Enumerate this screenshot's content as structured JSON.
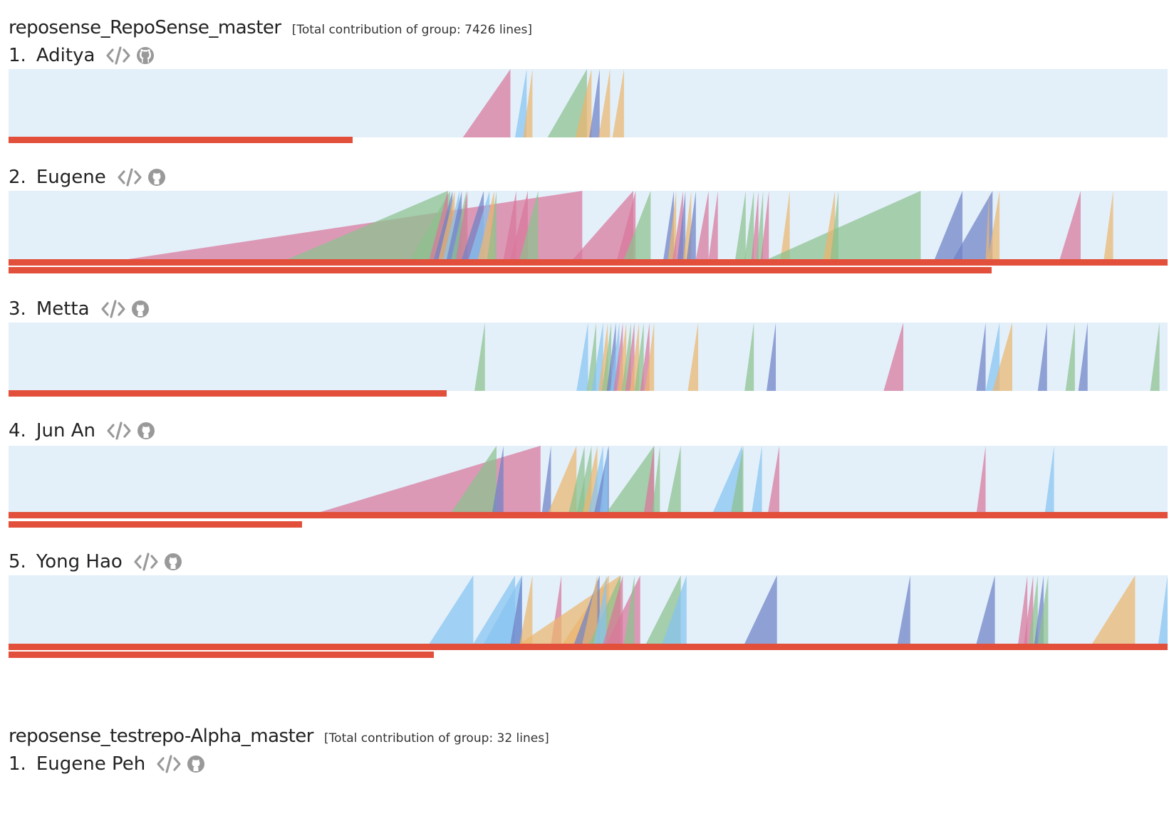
{
  "groups": [
    {
      "title": "reposense_RepoSense_master",
      "total": "[Total contribution of group: 7426 lines]",
      "users": [
        {
          "rank": "1.",
          "name": "Aditya",
          "bars": [
            0.297
          ],
          "commits": [
            {
              "start": 0.392,
              "end": 0.433,
              "color": "pink"
            },
            {
              "start": 0.437,
              "end": 0.447,
              "color": "blue"
            },
            {
              "start": 0.444,
              "end": 0.452,
              "color": "orange"
            },
            {
              "start": 0.465,
              "end": 0.499,
              "color": "green"
            },
            {
              "start": 0.489,
              "end": 0.503,
              "color": "orange"
            },
            {
              "start": 0.501,
              "end": 0.51,
              "color": "navy"
            },
            {
              "start": 0.509,
              "end": 0.519,
              "color": "orange"
            },
            {
              "start": 0.521,
              "end": 0.531,
              "color": "orange"
            }
          ]
        },
        {
          "rank": "2.",
          "name": "Eugene",
          "bars": [
            1.0,
            0.848
          ],
          "commits": [
            {
              "start": 0.103,
              "end": 0.495,
              "color": "pink"
            },
            {
              "start": 0.241,
              "end": 0.379,
              "color": "green"
            },
            {
              "start": 0.347,
              "end": 0.381,
              "color": "green"
            },
            {
              "start": 0.363,
              "end": 0.379,
              "color": "pink"
            },
            {
              "start": 0.367,
              "end": 0.383,
              "color": "navy"
            },
            {
              "start": 0.371,
              "end": 0.385,
              "color": "orange"
            },
            {
              "start": 0.375,
              "end": 0.389,
              "color": "blue"
            },
            {
              "start": 0.378,
              "end": 0.391,
              "color": "navy"
            },
            {
              "start": 0.382,
              "end": 0.395,
              "color": "green"
            },
            {
              "start": 0.386,
              "end": 0.396,
              "color": "pink"
            },
            {
              "start": 0.391,
              "end": 0.41,
              "color": "navy"
            },
            {
              "start": 0.397,
              "end": 0.415,
              "color": "blue"
            },
            {
              "start": 0.405,
              "end": 0.419,
              "color": "orange"
            },
            {
              "start": 0.413,
              "end": 0.421,
              "color": "green"
            },
            {
              "start": 0.427,
              "end": 0.438,
              "color": "pink"
            },
            {
              "start": 0.433,
              "end": 0.448,
              "color": "pink"
            },
            {
              "start": 0.441,
              "end": 0.457,
              "color": "green"
            },
            {
              "start": 0.487,
              "end": 0.539,
              "color": "pink"
            },
            {
              "start": 0.525,
              "end": 0.541,
              "color": "pink"
            },
            {
              "start": 0.531,
              "end": 0.554,
              "color": "green"
            },
            {
              "start": 0.565,
              "end": 0.574,
              "color": "navy"
            },
            {
              "start": 0.569,
              "end": 0.576,
              "color": "orange"
            },
            {
              "start": 0.573,
              "end": 0.582,
              "color": "pink"
            },
            {
              "start": 0.577,
              "end": 0.584,
              "color": "navy"
            },
            {
              "start": 0.582,
              "end": 0.589,
              "color": "orange"
            },
            {
              "start": 0.585,
              "end": 0.593,
              "color": "navy"
            },
            {
              "start": 0.593,
              "end": 0.604,
              "color": "pink"
            },
            {
              "start": 0.604,
              "end": 0.612,
              "color": "pink"
            },
            {
              "start": 0.627,
              "end": 0.636,
              "color": "green"
            },
            {
              "start": 0.635,
              "end": 0.643,
              "color": "green"
            },
            {
              "start": 0.641,
              "end": 0.647,
              "color": "pink"
            },
            {
              "start": 0.645,
              "end": 0.651,
              "color": "green"
            },
            {
              "start": 0.649,
              "end": 0.656,
              "color": "pink"
            },
            {
              "start": 0.666,
              "end": 0.674,
              "color": "orange"
            },
            {
              "start": 0.655,
              "end": 0.787,
              "color": "green"
            },
            {
              "start": 0.703,
              "end": 0.713,
              "color": "orange"
            },
            {
              "start": 0.709,
              "end": 0.716,
              "color": "green"
            },
            {
              "start": 0.799,
              "end": 0.823,
              "color": "navy"
            },
            {
              "start": 0.815,
              "end": 0.849,
              "color": "navy"
            },
            {
              "start": 0.843,
              "end": 0.846,
              "color": "orange"
            },
            {
              "start": 0.845,
              "end": 0.855,
              "color": "orange"
            },
            {
              "start": 0.907,
              "end": 0.925,
              "color": "pink"
            },
            {
              "start": 0.945,
              "end": 0.953,
              "color": "orange"
            }
          ]
        },
        {
          "rank": "3.",
          "name": "Metta",
          "bars": [
            0.378
          ],
          "commits": [
            {
              "start": 0.402,
              "end": 0.411,
              "color": "green"
            },
            {
              "start": 0.49,
              "end": 0.5,
              "color": "blue"
            },
            {
              "start": 0.499,
              "end": 0.507,
              "color": "green"
            },
            {
              "start": 0.503,
              "end": 0.513,
              "color": "blue"
            },
            {
              "start": 0.509,
              "end": 0.517,
              "color": "orange"
            },
            {
              "start": 0.512,
              "end": 0.52,
              "color": "green"
            },
            {
              "start": 0.516,
              "end": 0.524,
              "color": "navy"
            },
            {
              "start": 0.519,
              "end": 0.527,
              "color": "blue"
            },
            {
              "start": 0.522,
              "end": 0.53,
              "color": "pink"
            },
            {
              "start": 0.525,
              "end": 0.533,
              "color": "orange"
            },
            {
              "start": 0.529,
              "end": 0.537,
              "color": "green"
            },
            {
              "start": 0.532,
              "end": 0.54,
              "color": "pink"
            },
            {
              "start": 0.536,
              "end": 0.544,
              "color": "orange"
            },
            {
              "start": 0.54,
              "end": 0.548,
              "color": "green"
            },
            {
              "start": 0.545,
              "end": 0.553,
              "color": "pink"
            },
            {
              "start": 0.549,
              "end": 0.557,
              "color": "orange"
            },
            {
              "start": 0.586,
              "end": 0.595,
              "color": "orange"
            },
            {
              "start": 0.635,
              "end": 0.643,
              "color": "green"
            },
            {
              "start": 0.654,
              "end": 0.662,
              "color": "navy"
            },
            {
              "start": 0.755,
              "end": 0.772,
              "color": "pink"
            },
            {
              "start": 0.835,
              "end": 0.843,
              "color": "navy"
            },
            {
              "start": 0.843,
              "end": 0.855,
              "color": "blue"
            },
            {
              "start": 0.849,
              "end": 0.866,
              "color": "orange"
            },
            {
              "start": 0.888,
              "end": 0.896,
              "color": "navy"
            },
            {
              "start": 0.912,
              "end": 0.92,
              "color": "green"
            },
            {
              "start": 0.923,
              "end": 0.931,
              "color": "navy"
            },
            {
              "start": 0.985,
              "end": 0.993,
              "color": "green"
            }
          ]
        },
        {
          "rank": "4.",
          "name": "Jun An",
          "bars": [
            1.0,
            0.253
          ],
          "commits": [
            {
              "start": 0.263,
              "end": 0.459,
              "color": "pink"
            },
            {
              "start": 0.381,
              "end": 0.421,
              "color": "green"
            },
            {
              "start": 0.417,
              "end": 0.427,
              "color": "navy"
            },
            {
              "start": 0.46,
              "end": 0.468,
              "color": "navy"
            },
            {
              "start": 0.465,
              "end": 0.49,
              "color": "orange"
            },
            {
              "start": 0.483,
              "end": 0.497,
              "color": "green"
            },
            {
              "start": 0.49,
              "end": 0.503,
              "color": "green"
            },
            {
              "start": 0.495,
              "end": 0.508,
              "color": "orange"
            },
            {
              "start": 0.5,
              "end": 0.513,
              "color": "blue"
            },
            {
              "start": 0.505,
              "end": 0.518,
              "color": "navy"
            },
            {
              "start": 0.51,
              "end": 0.517,
              "color": "blue"
            },
            {
              "start": 0.515,
              "end": 0.557,
              "color": "green"
            },
            {
              "start": 0.548,
              "end": 0.557,
              "color": "pink"
            },
            {
              "start": 0.555,
              "end": 0.562,
              "color": "green"
            },
            {
              "start": 0.568,
              "end": 0.58,
              "color": "green"
            },
            {
              "start": 0.607,
              "end": 0.633,
              "color": "blue"
            },
            {
              "start": 0.623,
              "end": 0.634,
              "color": "green"
            },
            {
              "start": 0.641,
              "end": 0.65,
              "color": "blue"
            },
            {
              "start": 0.655,
              "end": 0.665,
              "color": "pink"
            },
            {
              "start": 0.835,
              "end": 0.843,
              "color": "pink"
            },
            {
              "start": 0.894,
              "end": 0.902,
              "color": "blue"
            }
          ]
        },
        {
          "rank": "5.",
          "name": "Yong Hao",
          "bars": [
            1.0,
            0.367
          ],
          "commits": [
            {
              "start": 0.363,
              "end": 0.401,
              "color": "blue"
            },
            {
              "start": 0.401,
              "end": 0.437,
              "color": "blue"
            },
            {
              "start": 0.41,
              "end": 0.443,
              "color": "blue"
            },
            {
              "start": 0.433,
              "end": 0.443,
              "color": "navy"
            },
            {
              "start": 0.441,
              "end": 0.452,
              "color": "orange"
            },
            {
              "start": 0.468,
              "end": 0.477,
              "color": "pink"
            },
            {
              "start": 0.441,
              "end": 0.528,
              "color": "orange"
            },
            {
              "start": 0.478,
              "end": 0.518,
              "color": "orange"
            },
            {
              "start": 0.488,
              "end": 0.51,
              "color": "navy"
            },
            {
              "start": 0.495,
              "end": 0.508,
              "color": "orange"
            },
            {
              "start": 0.501,
              "end": 0.528,
              "color": "green"
            },
            {
              "start": 0.505,
              "end": 0.516,
              "color": "blue"
            },
            {
              "start": 0.513,
              "end": 0.53,
              "color": "pink"
            },
            {
              "start": 0.516,
              "end": 0.545,
              "color": "pink"
            },
            {
              "start": 0.531,
              "end": 0.54,
              "color": "green"
            },
            {
              "start": 0.55,
              "end": 0.58,
              "color": "green"
            },
            {
              "start": 0.564,
              "end": 0.585,
              "color": "blue"
            },
            {
              "start": 0.635,
              "end": 0.663,
              "color": "navy"
            },
            {
              "start": 0.767,
              "end": 0.778,
              "color": "navy"
            },
            {
              "start": 0.835,
              "end": 0.851,
              "color": "navy"
            },
            {
              "start": 0.871,
              "end": 0.879,
              "color": "pink"
            },
            {
              "start": 0.876,
              "end": 0.884,
              "color": "pink"
            },
            {
              "start": 0.88,
              "end": 0.888,
              "color": "green"
            },
            {
              "start": 0.885,
              "end": 0.893,
              "color": "navy"
            },
            {
              "start": 0.888,
              "end": 0.897,
              "color": "green"
            },
            {
              "start": 0.935,
              "end": 0.972,
              "color": "orange"
            },
            {
              "start": 0.992,
              "end": 1.0,
              "color": "blue"
            }
          ]
        }
      ]
    },
    {
      "title": "reposense_testrepo-Alpha_master",
      "total": "[Total contribution of group: 32 lines]",
      "users": [
        {
          "rank": "1.",
          "name": "Eugene Peh"
        }
      ]
    }
  ],
  "colors": {
    "pink": "#d9779b",
    "blue": "#86c4f0",
    "orange": "#ebb56e",
    "green": "#8cc08e",
    "navy": "#6f81c6",
    "ramp_background": "#e3f0fa",
    "bar": "#e2503c",
    "icon": "#999999"
  },
  "icons": {
    "code": "code-view-icon",
    "repo": "github-icon"
  }
}
